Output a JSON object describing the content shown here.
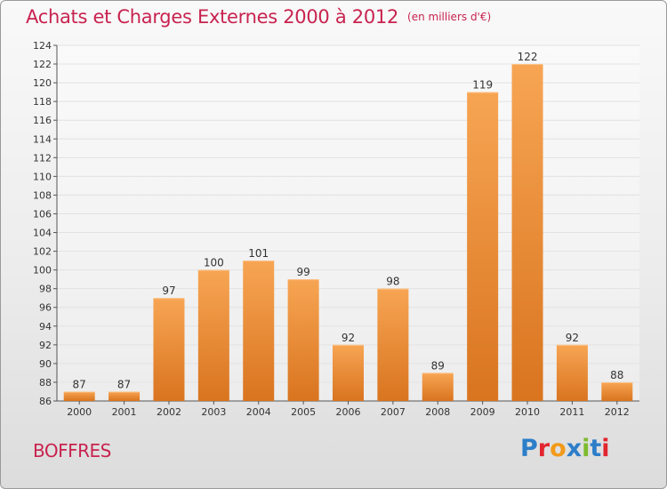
{
  "title": "Achats et Charges Externes 2000 à 2012",
  "unit": "(en milliers d'€)",
  "commune": "BOFFRES",
  "logo": {
    "text": "Proxiti"
  },
  "colors": {
    "title": "#c8234f",
    "bar_top": "#f7a553",
    "bar_bottom": "#d9741f",
    "grid": "#e2e2e2"
  },
  "chart_data": {
    "type": "bar",
    "title": "Achats et Charges Externes 2000 à 2012",
    "subtitle": "(en milliers d'€)",
    "categories": [
      "2000",
      "2001",
      "2002",
      "2003",
      "2004",
      "2005",
      "2006",
      "2007",
      "2008",
      "2009",
      "2010",
      "2011",
      "2012"
    ],
    "values": [
      87,
      87,
      97,
      100,
      101,
      99,
      92,
      98,
      89,
      119,
      122,
      92,
      88
    ],
    "ylim": [
      86,
      124
    ],
    "yticks": [
      86,
      88,
      90,
      92,
      94,
      96,
      98,
      100,
      102,
      104,
      106,
      108,
      110,
      112,
      114,
      116,
      118,
      120,
      122,
      124
    ],
    "grid": true,
    "data_labels": true
  }
}
